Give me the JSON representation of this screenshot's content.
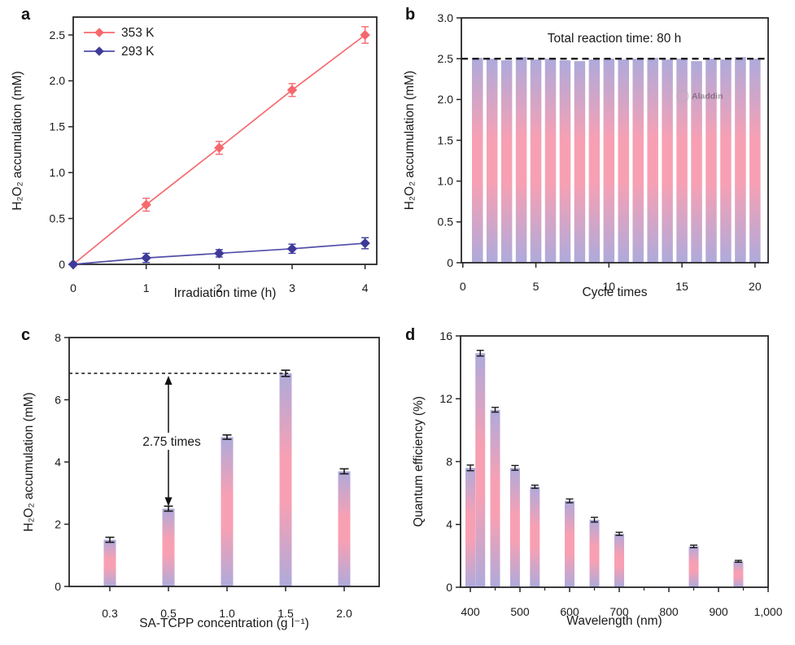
{
  "figure": {
    "background": "#ffffff",
    "panel_letters": {
      "a": "a",
      "b": "b",
      "c": "c",
      "d": "d"
    }
  },
  "colors": {
    "axis": "#26262a",
    "text": "#1a1a1a",
    "series_red": "#f5696e",
    "series_blue_marker": "#3d3a99",
    "series_blue_line": "#514ea8",
    "bar_gradient_edge": "#aeaadb",
    "bar_gradient_middle": "#f8a0b3",
    "dashed_line": "#141414",
    "error_bar": "#1a1a1a",
    "watermark_gray": "#b0b0b0"
  },
  "chart_data": [
    {
      "panel": "a",
      "type": "line",
      "xlabel": "Irradiation time (h)",
      "ylabel": "H₂O₂ accumulation (mM)",
      "xlim": [
        0,
        4.16
      ],
      "ylim": [
        0,
        2.695
      ],
      "xticks": [
        0,
        1,
        2,
        3,
        4
      ],
      "xtick_labels": [
        "0",
        "1",
        "2",
        "3",
        "4"
      ],
      "yticks": [
        0,
        0.5,
        1.0,
        1.5,
        2.0,
        2.5
      ],
      "ytick_labels": [
        "0",
        "0.5",
        "1.0",
        "1.5",
        "2.0",
        "2.5"
      ],
      "grid": false,
      "legend_position": "top-left",
      "series": [
        {
          "name": "353 K",
          "marker": "diamond",
          "color": "#f5696e",
          "line_color": "#f5696e",
          "x": [
            0,
            1,
            2,
            3,
            4
          ],
          "y": [
            0,
            0.65,
            1.27,
            1.9,
            2.5
          ],
          "yerr": [
            0,
            0.07,
            0.07,
            0.07,
            0.09
          ]
        },
        {
          "name": "293 K",
          "marker": "diamond",
          "color": "#3d3a99",
          "line_color": "#514ea8",
          "x": [
            0,
            1,
            2,
            3,
            4
          ],
          "y": [
            0,
            0.07,
            0.12,
            0.17,
            0.23
          ],
          "yerr": [
            0,
            0.05,
            0.04,
            0.05,
            0.06
          ]
        }
      ]
    },
    {
      "panel": "b",
      "type": "bar",
      "annotation": "Total reaction time: 80 h",
      "watermark": "Aladdin",
      "dashed_line_y": 2.5,
      "xlabel": "Cycle times",
      "ylabel": "H₂O₂ accumulation (mM)",
      "xlim": [
        -0.1,
        20.9
      ],
      "ylim": [
        0,
        3.0
      ],
      "xticks": [
        0,
        5,
        10,
        15,
        20
      ],
      "xtick_labels": [
        "0",
        "5",
        "10",
        "15",
        "20"
      ],
      "yticks": [
        0,
        0.5,
        1.0,
        1.5,
        2.0,
        2.5,
        3.0
      ],
      "ytick_labels": [
        "0",
        "0.5",
        "1.0",
        "1.5",
        "2.0",
        "2.5",
        "3.0"
      ],
      "grid": false,
      "x": [
        1,
        2,
        3,
        4,
        5,
        6,
        7,
        8,
        9,
        10,
        11,
        12,
        13,
        14,
        15,
        16,
        17,
        18,
        19,
        20
      ],
      "values": [
        2.51,
        2.5,
        2.48,
        2.52,
        2.49,
        2.5,
        2.48,
        2.47,
        2.49,
        2.5,
        2.49,
        2.5,
        2.51,
        2.49,
        2.5,
        2.47,
        2.5,
        2.49,
        2.52,
        2.5
      ]
    },
    {
      "panel": "c",
      "type": "bar-categorical",
      "annotation": "2.75 times",
      "dashed_line_y": 6.85,
      "xlabel": "SA-TCPP concentration (g l⁻¹)",
      "ylabel": "H₂O₂ accumulation (mM)",
      "ylim": [
        0,
        8
      ],
      "categories": [
        "0.3",
        "0.5",
        "1.0",
        "1.5",
        "2.0"
      ],
      "values": [
        1.5,
        2.5,
        4.8,
        6.85,
        3.7
      ],
      "yerr": [
        0.08,
        0.08,
        0.07,
        0.1,
        0.08
      ],
      "yticks": [
        0,
        2,
        4,
        6,
        8
      ],
      "ytick_labels": [
        "0",
        "2",
        "4",
        "6",
        "8"
      ],
      "grid": false
    },
    {
      "panel": "d",
      "type": "bar",
      "xlabel": "Wavelength (nm)",
      "ylabel": "Quantum efficiency (%)",
      "xlim": [
        380.3,
        1000
      ],
      "ylim": [
        0,
        16
      ],
      "xticks": [
        400,
        500,
        600,
        700,
        800,
        900,
        1000
      ],
      "xtick_labels": [
        "400",
        "500",
        "600",
        "700",
        "800",
        "900",
        "1,000"
      ],
      "minor_xticks": [
        450,
        550,
        650,
        750,
        850,
        950
      ],
      "yticks": [
        0,
        4,
        8,
        12,
        16
      ],
      "ytick_labels": [
        "0",
        "4",
        "8",
        "12",
        "16"
      ],
      "grid": false,
      "x": [
        400,
        420,
        450,
        490,
        530,
        600,
        650,
        700,
        850,
        940
      ],
      "values": [
        7.6,
        14.9,
        11.3,
        7.6,
        6.4,
        5.5,
        4.3,
        3.4,
        2.6,
        1.65
      ],
      "yerr": [
        0.18,
        0.18,
        0.15,
        0.15,
        0.1,
        0.12,
        0.15,
        0.1,
        0.08,
        0.06
      ]
    }
  ]
}
